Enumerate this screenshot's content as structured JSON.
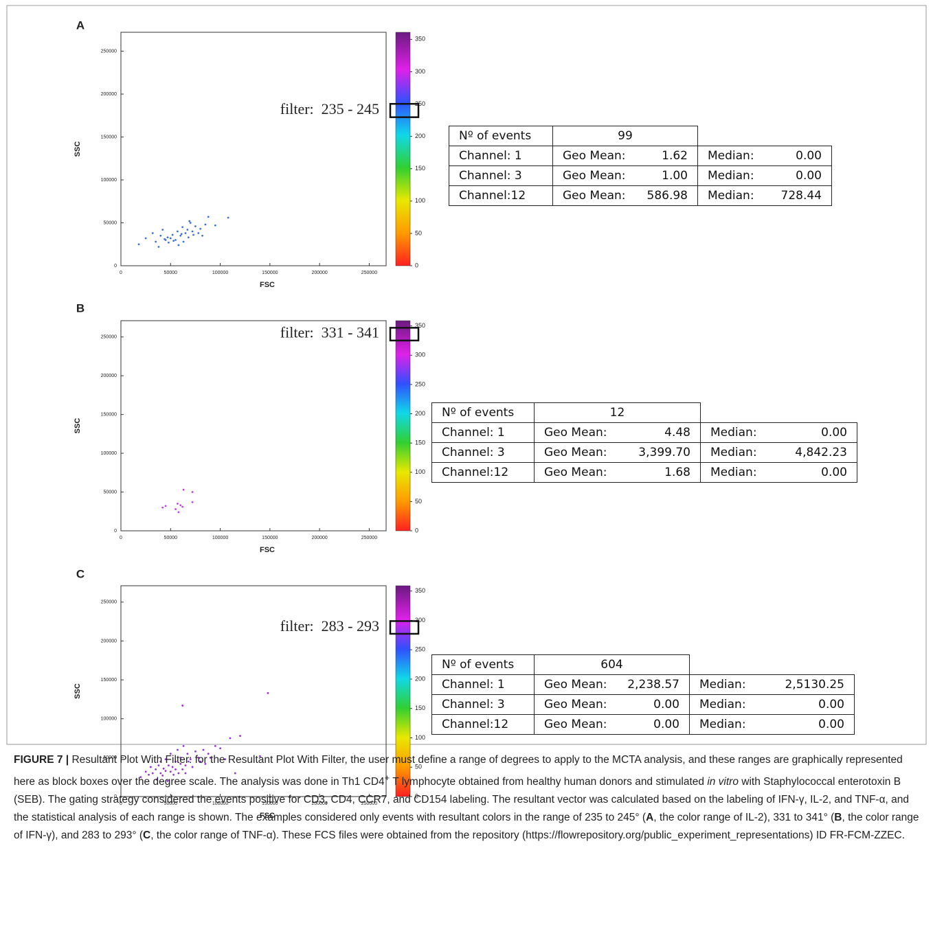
{
  "chart_data": [
    {
      "type": "scatter",
      "label": "A",
      "xlabel": "FSC",
      "ylabel": "SSC",
      "xlim": [
        0,
        267000
      ],
      "ylim": [
        0,
        272000
      ],
      "xticks": [
        0,
        50000,
        100000,
        150000,
        200000,
        250000
      ],
      "yticks": [
        0,
        50000,
        100000,
        150000,
        200000,
        250000
      ],
      "colorbar_lim": [
        0,
        361
      ],
      "colorbar_ticks": [
        0,
        50,
        100,
        150,
        200,
        250,
        300,
        350
      ],
      "filter_text": "filter:  235 - 245",
      "filter_range": [
        235,
        245
      ],
      "series": [
        {
          "color": "#3a6fd8",
          "x": [
            18000,
            25000,
            32000,
            35000,
            38000,
            40000,
            42000,
            45000,
            47000,
            48000,
            50000,
            52000,
            55000,
            57000,
            58000,
            60000,
            62000,
            63000,
            65000,
            67000,
            68000,
            70000,
            72000,
            73000,
            75000,
            78000,
            80000,
            82000,
            85000,
            88000,
            95000,
            108000,
            44000,
            53000,
            61000,
            69000
          ],
          "y": [
            25000,
            32000,
            38000,
            28000,
            22000,
            35000,
            42000,
            30000,
            33000,
            27000,
            32000,
            36000,
            30000,
            40000,
            24000,
            35000,
            45000,
            28000,
            38000,
            42000,
            33000,
            50000,
            40000,
            36000,
            46000,
            38000,
            43000,
            35000,
            48000,
            57000,
            47000,
            56000,
            31000,
            29000,
            37000,
            52000
          ]
        }
      ],
      "table": {
        "header": [
          "Nº of events",
          "99"
        ],
        "rows": [
          [
            "Channel: 1",
            "Geo Mean:",
            "1.62",
            "Median:",
            "0.00"
          ],
          [
            "Channel: 3",
            "Geo Mean:",
            "1.00",
            "Median:",
            "0.00"
          ],
          [
            "Channel:12",
            "Geo Mean:",
            "586.98",
            "Median:",
            "728.44"
          ]
        ]
      }
    },
    {
      "type": "scatter",
      "label": "B",
      "xlabel": "FSC",
      "ylabel": "SSC",
      "xlim": [
        0,
        267000
      ],
      "ylim": [
        0,
        271000
      ],
      "xticks": [
        0,
        50000,
        100000,
        150000,
        200000,
        250000
      ],
      "yticks": [
        0,
        50000,
        100000,
        150000,
        200000,
        250000
      ],
      "colorbar_lim": [
        0,
        359
      ],
      "colorbar_ticks": [
        0,
        50,
        100,
        150,
        200,
        250,
        300,
        350
      ],
      "filter_text": "filter:  331 - 341",
      "filter_range": [
        331,
        341
      ],
      "series": [
        {
          "color": "#c23ee6",
          "x": [
            42000,
            45000,
            55000,
            57000,
            58000,
            60000,
            62000,
            63000,
            72000,
            72000
          ],
          "y": [
            30000,
            32000,
            28000,
            35000,
            24000,
            33000,
            31000,
            53000,
            50000,
            37000
          ]
        }
      ],
      "table": {
        "header": [
          "Nº of events",
          "12"
        ],
        "rows": [
          [
            "Channel: 1",
            "Geo Mean:",
            "4.48",
            "Median:",
            "0.00"
          ],
          [
            "Channel: 3",
            "Geo Mean:",
            "3,399.70",
            "Median:",
            "4,842.23"
          ],
          [
            "Channel:12",
            "Geo Mean:",
            "1.68",
            "Median:",
            "0.00"
          ]
        ]
      }
    },
    {
      "type": "scatter",
      "label": "C",
      "xlabel": "FSC",
      "ylabel": "SSC",
      "xlim": [
        0,
        267000
      ],
      "ylim": [
        0,
        271000
      ],
      "xticks": [
        0,
        50000,
        100000,
        150000,
        200000,
        250000
      ],
      "yticks": [
        0,
        50000,
        100000,
        150000,
        200000,
        250000
      ],
      "colorbar_lim": [
        0,
        359
      ],
      "colorbar_ticks": [
        0,
        50,
        100,
        150,
        200,
        250,
        300,
        350
      ],
      "filter_text": "filter:  283 - 293",
      "filter_range": [
        283,
        293
      ],
      "series": [
        {
          "color": "#9a2fe0",
          "x": [
            20000,
            25000,
            28000,
            30000,
            32000,
            35000,
            36000,
            38000,
            40000,
            40000,
            42000,
            43000,
            45000,
            45000,
            47000,
            48000,
            50000,
            50000,
            52000,
            53000,
            55000,
            55000,
            57000,
            58000,
            60000,
            60000,
            62000,
            63000,
            65000,
            65000,
            67000,
            68000,
            70000,
            72000,
            75000,
            78000,
            80000,
            83000,
            85000,
            88000,
            90000,
            95000,
            100000,
            105000,
            110000,
            115000,
            120000,
            140000,
            62000,
            148000
          ],
          "y": [
            25000,
            32000,
            28000,
            38000,
            30000,
            35000,
            22000,
            40000,
            30000,
            45000,
            27000,
            36000,
            33000,
            48000,
            20000,
            40000,
            32000,
            55000,
            38000,
            28000,
            45000,
            35000,
            60000,
            30000,
            42000,
            50000,
            35000,
            65000,
            40000,
            30000,
            55000,
            45000,
            48000,
            38000,
            58000,
            50000,
            45000,
            60000,
            42000,
            55000,
            50000,
            65000,
            62000,
            48000,
            75000,
            30000,
            78000,
            52000,
            117000,
            133000
          ]
        }
      ],
      "table": {
        "header": [
          "Nº of events",
          "604"
        ],
        "rows": [
          [
            "Channel: 1",
            "Geo Mean:",
            "2,238.57",
            "Median:",
            "2,5130.25"
          ],
          [
            "Channel: 3",
            "Geo Mean:",
            "0.00",
            "Median:",
            "0.00"
          ],
          [
            "Channel:12",
            "Geo Mean:",
            "0.00",
            "Median:",
            "0.00"
          ]
        ]
      }
    }
  ],
  "caption": {
    "parts": [
      "FIGURE 7 |",
      " Resultant Plot With Filter: for the Resultant Plot With Filter, the user must define a range of degrees to apply to the MCTA analysis, and these ranges are graphically represented here as block boxes over the degree scale. The analysis was done in Th1 CD4",
      "+",
      " T lymphocyte obtained from healthy human donors and stimulated ",
      "in vitro",
      " with Staphylococcal enterotoxin B (SEB). The gating strategy considered the events positive for CD3, CD4, CCR7, and CD154 labeling. The resultant vector was calculated based on the labeling of IFN-γ, IL-2, and TNF-α, and the statistical analysis of each range is shown. The examples considered only events with resultant colors in the range of 235 to 245° (",
      "A",
      ", the color range of IL-2), 331 to 341° (",
      "B",
      ", the color range of IFN-γ), and 283 to 293° (",
      "C",
      ", the color range of TNF-α). These FCS files were obtained from the repository (https://flowrepository.org/public_experiment_representations) ID FR-FCM-ZZEC."
    ]
  }
}
